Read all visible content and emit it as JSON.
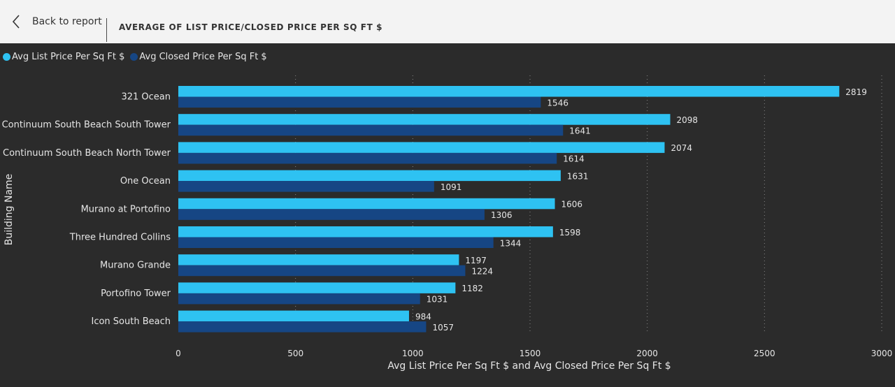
{
  "header": {
    "back_label": "Back to report",
    "report_title": "AVERAGE OF LIST PRICE/CLOSED PRICE PER SQ FT $"
  },
  "colors": {
    "list": "#2ec2f2",
    "closed": "#164684",
    "background": "#2b2b2b",
    "text": "#e6e6e6",
    "grid": "#8a8a8a",
    "header_bg": "#f3f3f3"
  },
  "icons": {
    "back": "chevron-left-icon"
  },
  "chart_data": {
    "type": "bar",
    "orientation": "horizontal",
    "categories": [
      "321 Ocean",
      "Continuum South Beach South Tower",
      "Continuum South Beach North Tower",
      "One Ocean",
      "Murano at Portofino",
      "Three Hundred Collins",
      "Murano Grande",
      "Portofino Tower",
      "Icon South Beach"
    ],
    "series": [
      {
        "name": "Avg List Price Per Sq Ft $",
        "values": [
          2819,
          2098,
          2074,
          1631,
          1606,
          1598,
          1197,
          1182,
          984
        ]
      },
      {
        "name": "Avg Closed Price Per Sq Ft $",
        "values": [
          1546,
          1641,
          1614,
          1091,
          1306,
          1344,
          1224,
          1031,
          1057
        ]
      }
    ],
    "xlabel": "Avg List Price Per Sq Ft $ and Avg Closed Price Per Sq Ft $",
    "ylabel": "Building Name",
    "xlim": [
      0,
      3000
    ],
    "xticks": [
      0,
      500,
      1000,
      1500,
      2000,
      2500,
      3000
    ],
    "grid": true,
    "legend_position": "top-left",
    "data_labels": true
  }
}
